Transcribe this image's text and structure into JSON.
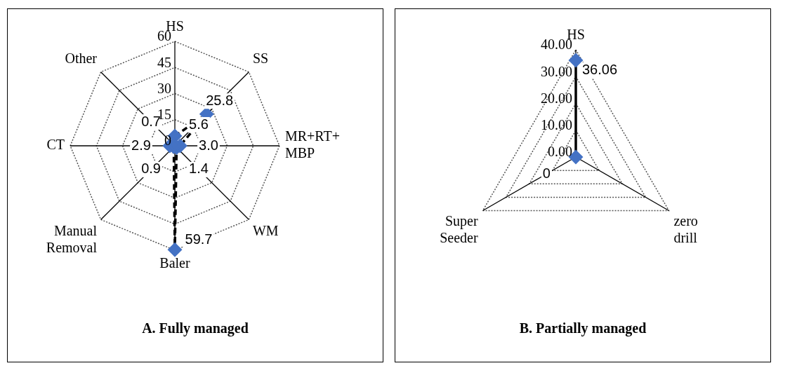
{
  "chart_data": [
    {
      "type": "radar",
      "title": "A. Fully managed",
      "categories": [
        "HS",
        "SS",
        "MR+RT+\nMBP",
        "WM",
        "Baler",
        "Manual\nRemoval",
        "CT",
        "Other"
      ],
      "series": [
        {
          "color": "#000000",
          "colors": [
            "#4472c4",
            "#4472c4",
            "#4472c4",
            "#4472c4",
            "#4472c4",
            "#4472c4",
            "#4472c4",
            "#4472c4"
          ],
          "values": [
            5.6,
            25.8,
            3.0,
            1.4,
            59.7,
            0.9,
            2.9,
            0.7
          ],
          "value_labels": [
            "5.6",
            "25.8",
            "3.0",
            "1.4",
            "59.7",
            "0.9",
            "2.9",
            "0.7"
          ]
        }
      ],
      "ylim": [
        0,
        60
      ],
      "yticks": [
        0,
        15,
        30,
        45,
        60
      ],
      "grid": true,
      "marker": "diamond",
      "line_style": "dashed"
    },
    {
      "type": "radar",
      "title": "B. Partially managed",
      "categories": [
        "HS",
        "zero\ndrill",
        "Super\nSeeder"
      ],
      "series": [
        {
          "color": "#000000",
          "colors": [
            "#4472c4",
            "#4472c4",
            "#4472c4"
          ],
          "values": [
            36.06,
            null,
            0
          ],
          "value_labels": [
            "36.06",
            null,
            "0"
          ]
        }
      ],
      "ylim": [
        0,
        40
      ],
      "yticks": [
        {
          "value": 0,
          "label": "0.00"
        },
        {
          "value": 10,
          "label": "10.00"
        },
        {
          "value": 20,
          "label": "20.00"
        },
        {
          "value": 30,
          "label": "30.00"
        },
        {
          "value": 40,
          "label": "40.00"
        }
      ],
      "grid": true,
      "marker": "diamond",
      "line_style": "dashed"
    }
  ]
}
